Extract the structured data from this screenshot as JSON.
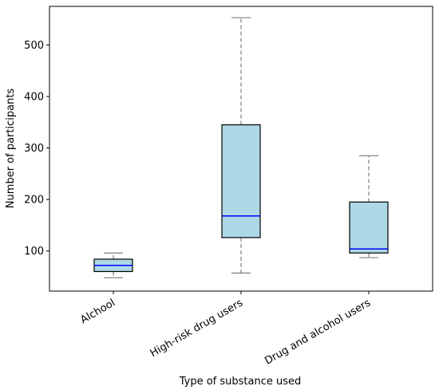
{
  "chart_data": {
    "type": "box",
    "xlabel": "Type of substance used",
    "ylabel": "Number of participants",
    "ylim": [
      22,
      575
    ],
    "yticks": [
      100,
      200,
      300,
      400,
      500
    ],
    "categories": [
      "Alchool",
      "High-risk drug users",
      "Drug and alcohol users"
    ],
    "boxes": [
      {
        "category": "Alchool",
        "whisker_low": 48,
        "q1": 60,
        "median": 72,
        "q3": 84,
        "whisker_high": 96
      },
      {
        "category": "High-risk drug users",
        "whisker_low": 57,
        "q1": 126,
        "median": 168,
        "q3": 345,
        "whisker_high": 553
      },
      {
        "category": "Drug and alcohol users",
        "whisker_low": 87,
        "q1": 96,
        "median": 104,
        "q3": 195,
        "whisker_high": 285
      }
    ],
    "colors": {
      "box_fill": "#add8e6",
      "median": "#0000ff",
      "whisker": "#808080",
      "outline": "#000000"
    },
    "grid": false
  }
}
